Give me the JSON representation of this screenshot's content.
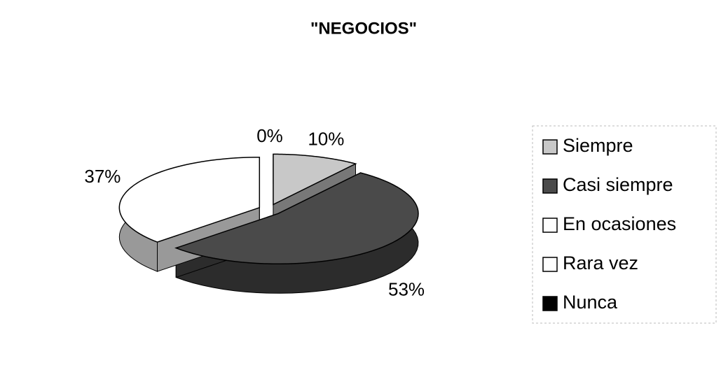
{
  "chart_data": {
    "type": "pie3d",
    "title": "\"NEGOCIOS\"",
    "categories": [
      "Siempre",
      "Casi siempre",
      "En ocasiones",
      "Rara vez",
      "Nunca"
    ],
    "values": [
      10,
      53,
      37,
      0,
      0
    ],
    "value_labels": [
      "10%",
      "53%",
      "37%",
      "0%",
      null
    ],
    "colors": [
      "#c8c8c8",
      "#4a4a4a",
      "#ffffff",
      "#ffffff",
      "#000000"
    ],
    "legend": "right"
  }
}
